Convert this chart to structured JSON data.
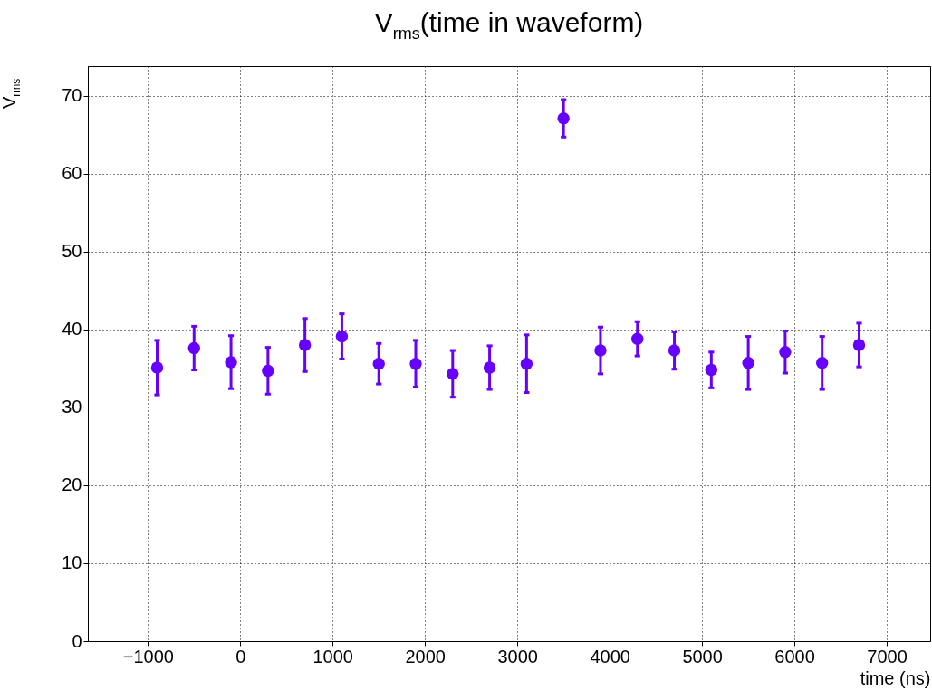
{
  "chart_data": {
    "type": "scatter",
    "title": "V$_{rms}$(time in waveform)",
    "xlabel": "time (ns)",
    "ylabel": "V$_{rms}$",
    "x": [
      -900,
      -500,
      -100,
      300,
      700,
      1100,
      1500,
      1900,
      2300,
      2700,
      3100,
      3500,
      3900,
      4300,
      4700,
      5100,
      5500,
      5900,
      6300,
      6700
    ],
    "series": [
      {
        "color": "#6600ff",
        "marker": "circle",
        "values": [
          35.1,
          37.6,
          35.8,
          34.7,
          38.0,
          39.1,
          35.6,
          35.6,
          34.3,
          35.1,
          35.6,
          67.1,
          37.3,
          38.8,
          37.3,
          34.8,
          35.7,
          37.1,
          35.7,
          38.0
        ],
        "errors": [
          3.5,
          2.8,
          3.4,
          3.0,
          3.4,
          2.9,
          2.6,
          3.0,
          3.0,
          2.8,
          3.7,
          2.4,
          3.0,
          2.2,
          2.4,
          2.3,
          3.4,
          2.7,
          3.4,
          2.8
        ]
      }
    ],
    "xlim": [
      -1650,
      7470
    ],
    "ylim": [
      0,
      73.8
    ],
    "xticks": [
      -1000,
      0,
      1000,
      2000,
      3000,
      4000,
      5000,
      6000,
      7000
    ],
    "yticks": [
      0,
      10,
      20,
      30,
      40,
      50,
      60,
      70
    ],
    "grid": true,
    "line_style": "dotted"
  }
}
